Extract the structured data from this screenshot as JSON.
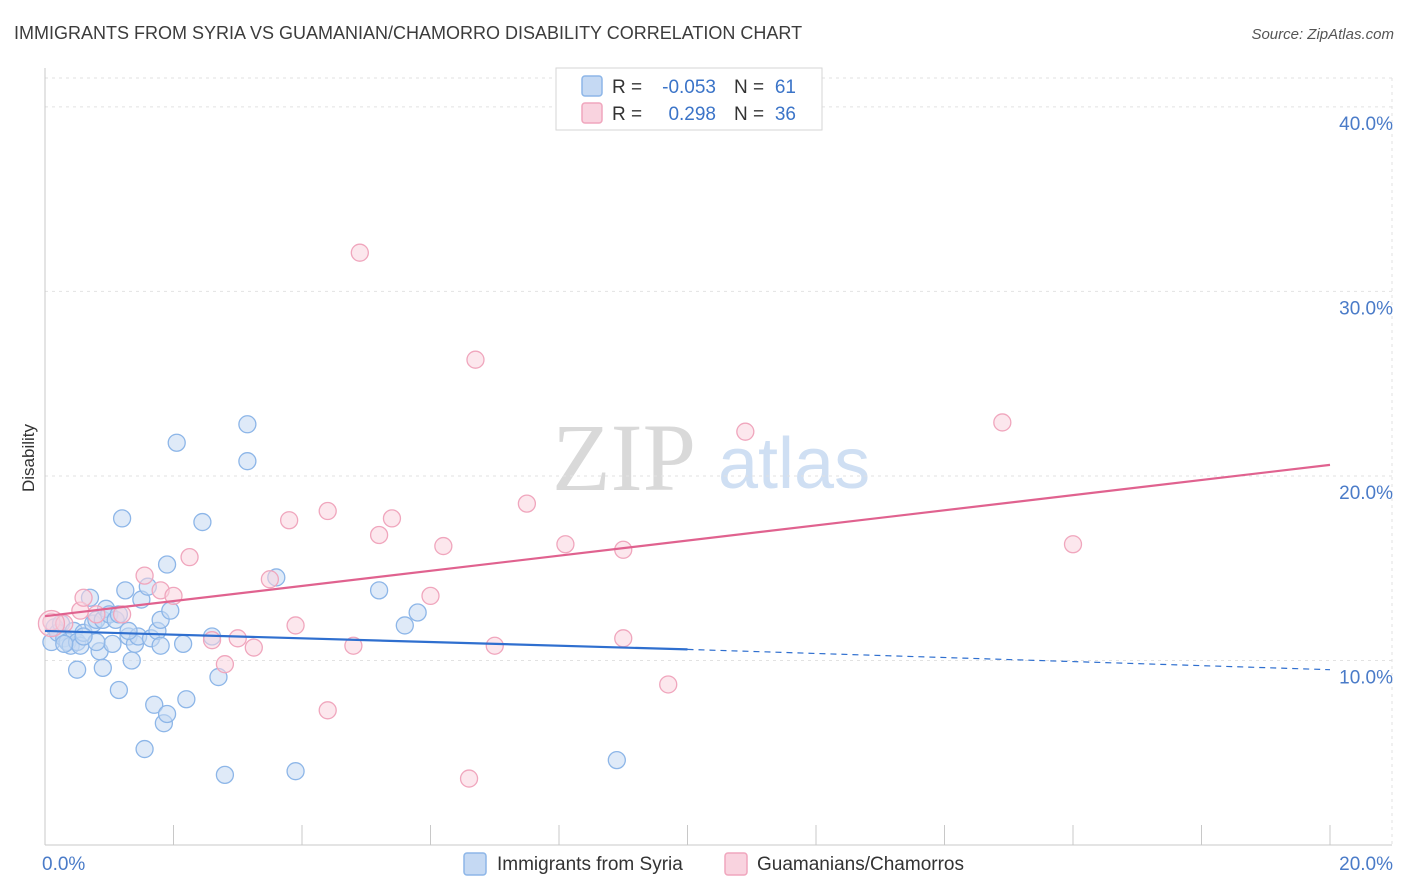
{
  "chart_data": {
    "type": "scatter",
    "title": "IMMIGRANTS FROM SYRIA VS GUAMANIAN/CHAMORRO DISABILITY CORRELATION CHART",
    "source": "Source: ZipAtlas.com",
    "xlabel": "",
    "ylabel": "Disability",
    "xlim": [
      0,
      20
    ],
    "ylim": [
      0,
      42
    ],
    "x_tick_labels": [
      {
        "value": 0,
        "label": "0.0%"
      },
      {
        "value": 20,
        "label": "20.0%"
      }
    ],
    "y_tick_labels": [
      {
        "value": 10,
        "label": "10.0%"
      },
      {
        "value": 20,
        "label": "20.0%"
      },
      {
        "value": 30,
        "label": "30.0%"
      },
      {
        "value": 40,
        "label": "40.0%"
      }
    ],
    "x_minor_ticks": [
      0,
      2,
      4,
      6,
      8,
      10,
      12,
      14,
      16,
      18,
      20
    ],
    "grid": true,
    "legend": {
      "placement": "top-center",
      "rows": [
        {
          "r_label": "R =",
          "r_value": "-0.053",
          "n_label": "N =",
          "n_value": "61"
        },
        {
          "r_label": "R =",
          "r_value": "0.298",
          "n_label": "N =",
          "n_value": "36"
        }
      ]
    },
    "series": [
      {
        "name": "Immigrants from Syria",
        "color": "#8db6e8",
        "fill": "#c5d9f3",
        "line_color": "#2f6fcf",
        "trend": {
          "x0": 0,
          "y0": 11.6,
          "x1": 10,
          "y1": 10.6,
          "dash_x1": 20,
          "dash_y1": 9.5
        },
        "points": [
          [
            0.1,
            11.0
          ],
          [
            0.15,
            11.8
          ],
          [
            0.2,
            11.5
          ],
          [
            0.25,
            12.0
          ],
          [
            0.3,
            11.2
          ],
          [
            0.35,
            11.0
          ],
          [
            0.4,
            10.8
          ],
          [
            0.45,
            11.6
          ],
          [
            0.5,
            11.0
          ],
          [
            0.55,
            10.8
          ],
          [
            0.6,
            11.5
          ],
          [
            0.7,
            13.4
          ],
          [
            0.75,
            12.0
          ],
          [
            0.8,
            12.2
          ],
          [
            0.85,
            10.5
          ],
          [
            0.9,
            12.2
          ],
          [
            0.95,
            12.8
          ],
          [
            1.0,
            12.5
          ],
          [
            1.05,
            10.9
          ],
          [
            1.1,
            12.2
          ],
          [
            1.15,
            12.5
          ],
          [
            0.5,
            9.5
          ],
          [
            0.9,
            9.6
          ],
          [
            1.15,
            8.4
          ],
          [
            1.2,
            17.7
          ],
          [
            1.25,
            13.8
          ],
          [
            1.3,
            11.3
          ],
          [
            1.35,
            10.0
          ],
          [
            1.4,
            10.9
          ],
          [
            1.45,
            11.3
          ],
          [
            1.5,
            13.3
          ],
          [
            1.55,
            5.2
          ],
          [
            1.6,
            14.0
          ],
          [
            1.65,
            11.2
          ],
          [
            1.7,
            7.6
          ],
          [
            1.75,
            11.6
          ],
          [
            1.8,
            12.2
          ],
          [
            1.8,
            10.8
          ],
          [
            1.85,
            6.6
          ],
          [
            1.9,
            7.1
          ],
          [
            1.9,
            15.2
          ],
          [
            1.95,
            12.7
          ],
          [
            2.05,
            21.8
          ],
          [
            2.15,
            10.9
          ],
          [
            2.2,
            7.9
          ],
          [
            2.45,
            17.5
          ],
          [
            2.6,
            11.3
          ],
          [
            2.7,
            9.1
          ],
          [
            2.8,
            3.8
          ],
          [
            3.15,
            22.8
          ],
          [
            3.15,
            20.8
          ],
          [
            3.6,
            14.5
          ],
          [
            3.9,
            4.0
          ],
          [
            5.2,
            13.8
          ],
          [
            5.6,
            11.9
          ],
          [
            5.8,
            12.6
          ],
          [
            8.9,
            4.6
          ],
          [
            0.8,
            11.0
          ],
          [
            1.3,
            11.6
          ],
          [
            0.3,
            10.9
          ],
          [
            0.6,
            11.3
          ]
        ]
      },
      {
        "name": "Guamanians/Chamorros",
        "color": "#f0a6bd",
        "fill": "#f9d3df",
        "line_color": "#e0628f",
        "trend": {
          "x0": 0,
          "y0": 12.4,
          "x1": 20,
          "y1": 20.6
        },
        "points": [
          [
            0.1,
            12.1
          ],
          [
            0.3,
            12.0
          ],
          [
            0.55,
            12.7
          ],
          [
            0.8,
            12.5
          ],
          [
            1.2,
            12.5
          ],
          [
            1.55,
            14.6
          ],
          [
            1.8,
            13.8
          ],
          [
            2.0,
            13.5
          ],
          [
            2.25,
            15.6
          ],
          [
            2.6,
            11.1
          ],
          [
            2.8,
            9.8
          ],
          [
            3.0,
            11.2
          ],
          [
            3.25,
            10.7
          ],
          [
            3.5,
            14.4
          ],
          [
            3.8,
            17.6
          ],
          [
            3.9,
            11.9
          ],
          [
            4.4,
            18.1
          ],
          [
            4.4,
            7.3
          ],
          [
            4.8,
            10.8
          ],
          [
            4.9,
            32.1
          ],
          [
            5.2,
            16.8
          ],
          [
            5.4,
            17.7
          ],
          [
            6.0,
            13.5
          ],
          [
            6.2,
            16.2
          ],
          [
            6.6,
            3.6
          ],
          [
            6.7,
            26.3
          ],
          [
            7.0,
            10.8
          ],
          [
            7.5,
            18.5
          ],
          [
            8.1,
            16.3
          ],
          [
            9.0,
            11.2
          ],
          [
            9.0,
            16.0
          ],
          [
            9.7,
            8.7
          ],
          [
            10.9,
            22.4
          ],
          [
            14.9,
            22.9
          ],
          [
            16.0,
            16.3
          ],
          [
            0.6,
            13.4
          ]
        ]
      }
    ]
  },
  "bottom_legend": {
    "syria": "Immigrants from Syria",
    "guam": "Guamanians/Chamorros"
  },
  "watermark": {
    "zip": "ZIP",
    "atlas": "atlas"
  }
}
